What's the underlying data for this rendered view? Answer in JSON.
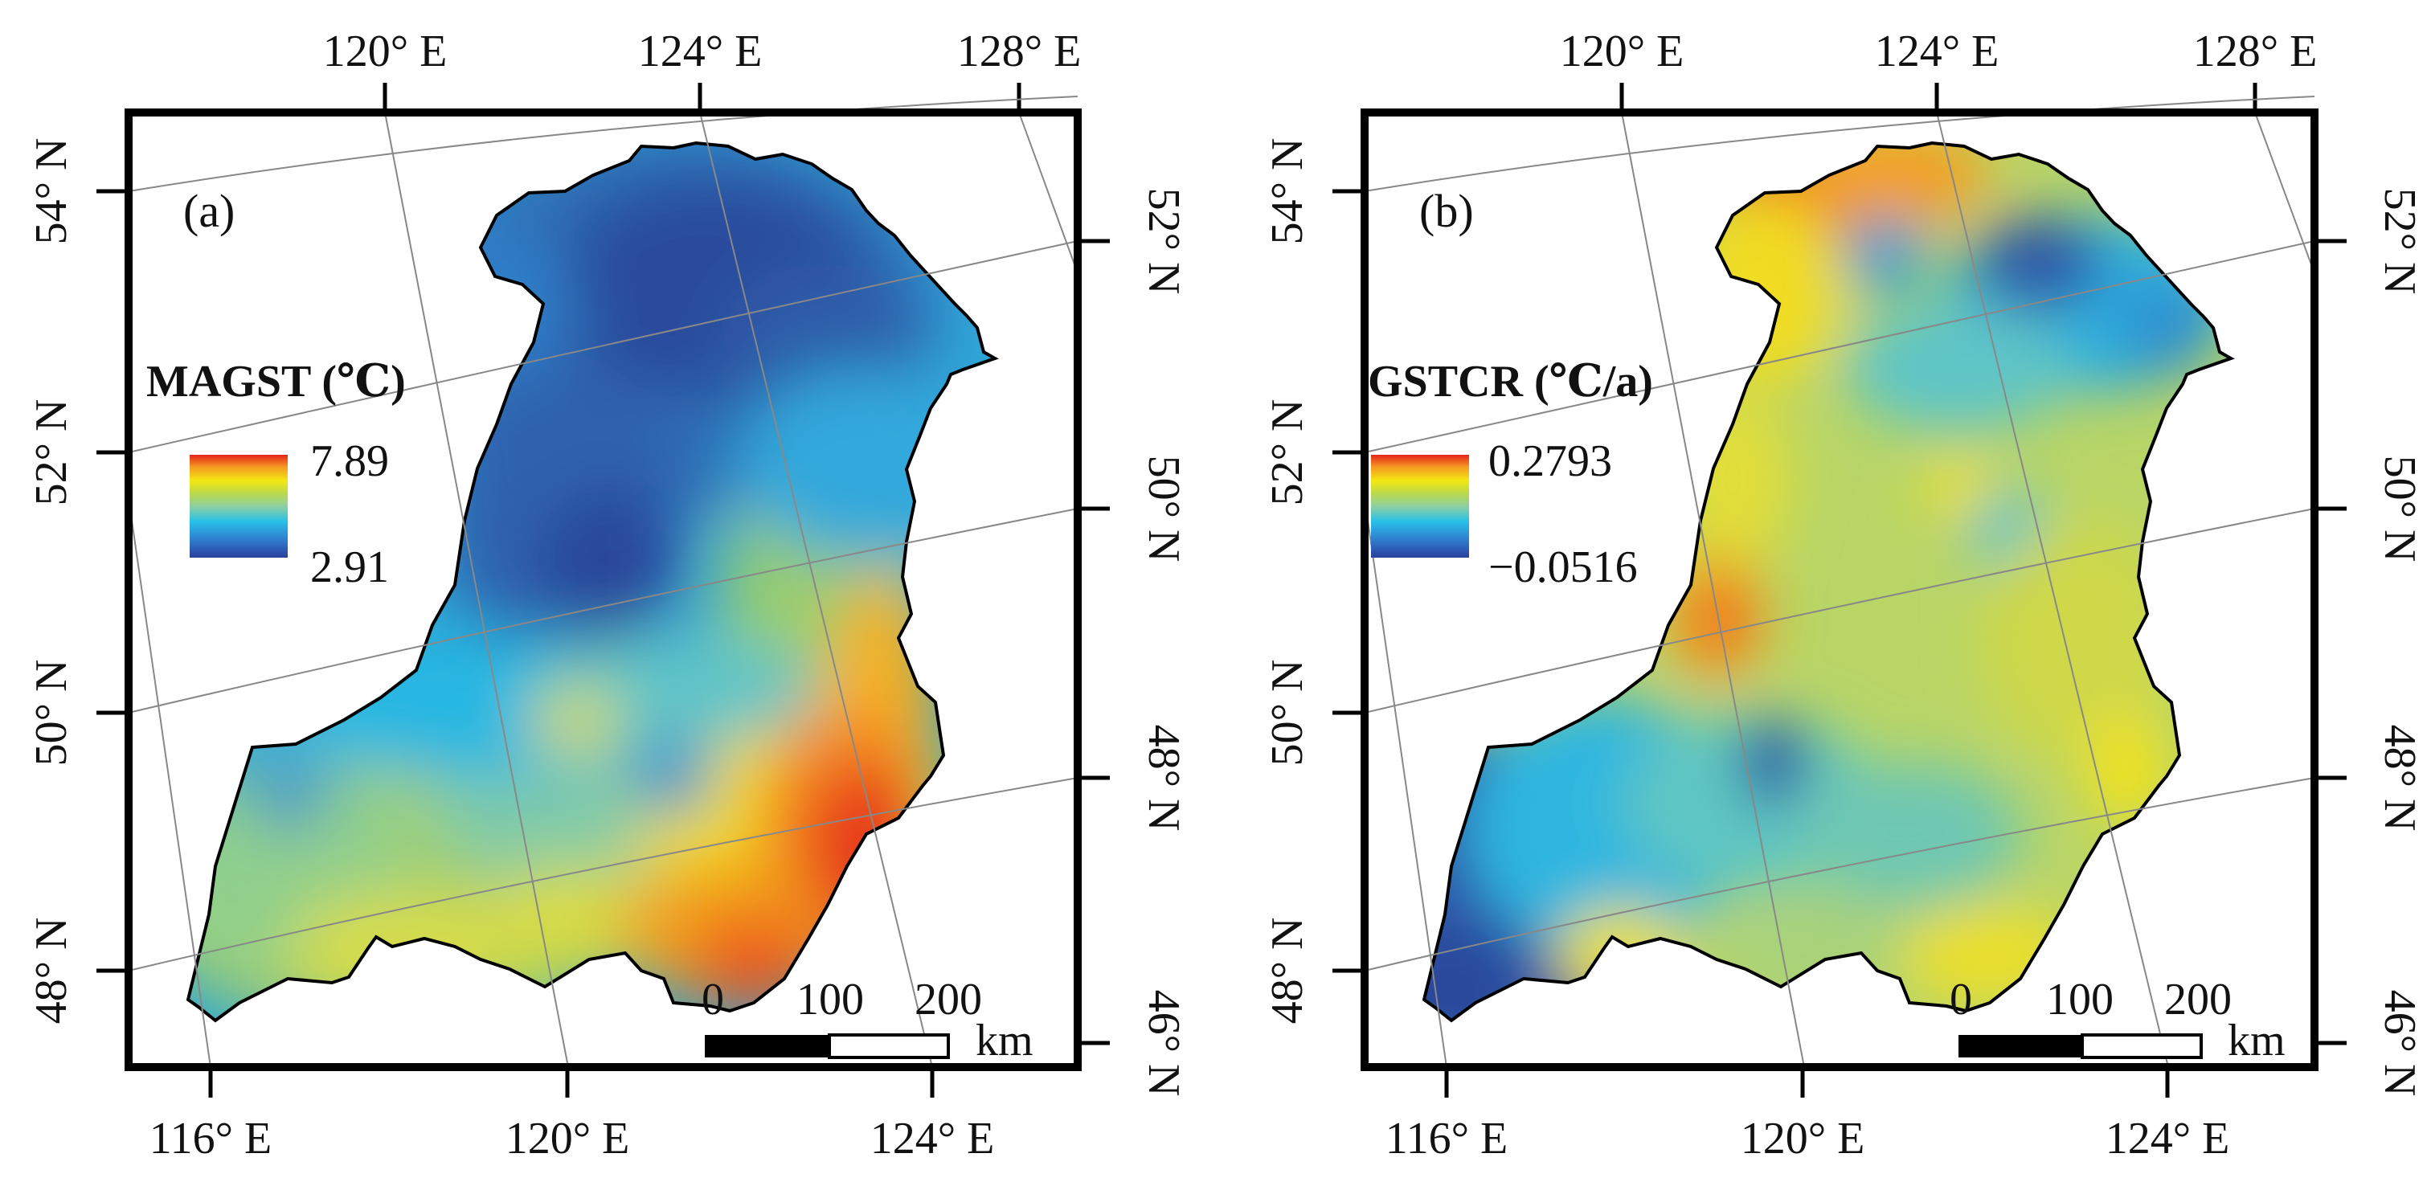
{
  "panel_a": {
    "label": "(a)",
    "legend_title": "MAGST (℃)",
    "legend_max": "7.89",
    "legend_min": "2.91",
    "top_ticks": [
      "120° E",
      "124° E",
      "128° E"
    ],
    "bottom_ticks": [
      "116° E",
      "120° E",
      "124° E"
    ],
    "left_ticks": [
      "54° N",
      "52° N",
      "50° N",
      "48° N"
    ],
    "right_ticks": [
      "52° N",
      "50° N",
      "48° N",
      "46° N"
    ],
    "scale_labels": [
      "0",
      "100",
      "200"
    ],
    "scale_unit": "km"
  },
  "panel_b": {
    "label": "(b)",
    "legend_title": "GSTCR (℃/a)",
    "legend_max": "0.2793",
    "legend_min": "−0.0516",
    "top_ticks": [
      "120° E",
      "124° E",
      "128° E"
    ],
    "bottom_ticks": [
      "116° E",
      "120° E",
      "124° E"
    ],
    "left_ticks": [
      "54° N",
      "52° N",
      "50° N",
      "48° N"
    ],
    "right_ticks": [
      "52° N",
      "50° N",
      "48° N",
      "46° N"
    ],
    "scale_labels": [
      "0",
      "100",
      "200"
    ],
    "scale_unit": "km"
  },
  "colors": {
    "frame": "#000000",
    "ramp": [
      "#2b4fa0",
      "#2f7fc7",
      "#27b5e0",
      "#7fcdbb",
      "#9acd5a",
      "#c7d94a",
      "#f2e510",
      "#f5a21a",
      "#ee4a1e",
      "#e2231a"
    ]
  }
}
